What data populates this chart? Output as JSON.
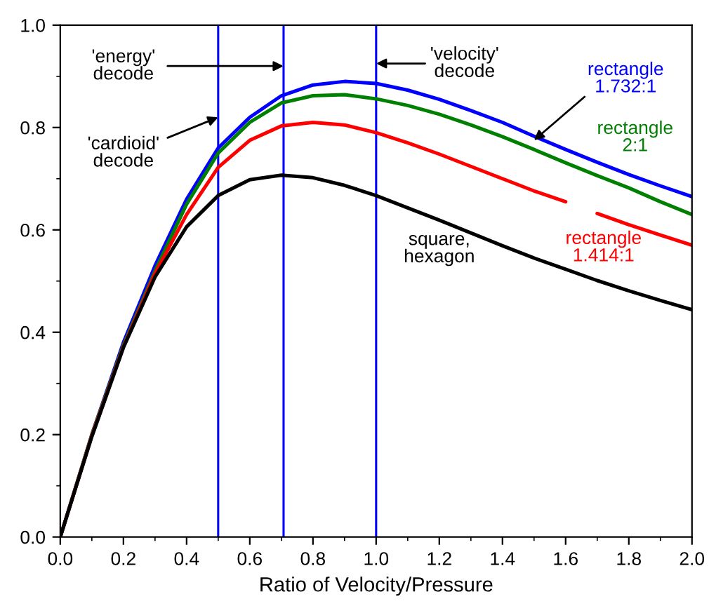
{
  "chart_data": {
    "type": "line",
    "xlabel": "Ratio of Velocity/Pressure",
    "x": [
      0,
      0.1,
      0.2,
      0.3,
      0.4,
      0.5,
      0.6,
      0.7,
      0.8,
      0.9,
      1.0,
      1.1,
      1.2,
      1.3,
      1.4,
      1.5,
      1.6,
      1.7,
      1.8,
      1.9,
      2.0
    ],
    "series": [
      {
        "name": "rectangle\n1.732:1",
        "color": "#0000ff",
        "values": [
          0,
          0.2,
          0.38,
          0.53,
          0.66,
          0.76,
          0.82,
          0.862,
          0.883,
          0.89,
          0.886,
          0.873,
          0.855,
          0.833,
          0.81,
          0.783,
          0.757,
          0.732,
          0.708,
          0.686,
          0.665
        ]
      },
      {
        "name": "rectangle\n2:1",
        "color": "#008000",
        "values": [
          0,
          0.2,
          0.375,
          0.52,
          0.65,
          0.75,
          0.81,
          0.848,
          0.862,
          0.864,
          0.856,
          0.843,
          0.826,
          0.805,
          0.782,
          0.757,
          0.731,
          0.706,
          0.682,
          0.655,
          0.63
        ]
      },
      {
        "name": "rectangle\n1.414:1",
        "color": "#ff0000",
        "x": [
          0,
          0.1,
          0.2,
          0.3,
          0.4,
          0.5,
          0.6,
          0.7,
          0.8,
          0.9,
          1.0,
          1.1,
          1.2,
          1.3,
          1.4,
          1.5,
          1.6,
          1.65,
          1.7,
          1.8,
          1.9,
          2.0
        ],
        "values": [
          0,
          0.198,
          0.372,
          0.515,
          0.63,
          0.722,
          0.775,
          0.803,
          0.81,
          0.805,
          0.79,
          0.77,
          0.748,
          0.724,
          0.7,
          0.676,
          0.655,
          null,
          0.632,
          0.61,
          0.59,
          0.57
        ]
      },
      {
        "name": "square,\nhexagon",
        "color": "#000000",
        "values": [
          0,
          0.196,
          0.37,
          0.508,
          0.606,
          0.667,
          0.698,
          0.707,
          0.702,
          0.687,
          0.667,
          0.643,
          0.619,
          0.594,
          0.569,
          0.545,
          0.523,
          0.501,
          0.481,
          0.462,
          0.444
        ]
      }
    ],
    "ref_lines": [
      {
        "axis": "x",
        "value": 0.5,
        "color": "#0000ff"
      },
      {
        "axis": "x",
        "value": 0.707,
        "color": "#0000ff"
      },
      {
        "axis": "x",
        "value": 1.0,
        "color": "#0000ff"
      }
    ],
    "annotations": [
      {
        "text": "'energy'\ndecode",
        "x": 0.707,
        "y": 0.92
      },
      {
        "text": "'cardioid'\ndecode",
        "x": 0.5,
        "y": 0.82
      },
      {
        "text": "'velocity'\ndecode",
        "x": 1.0,
        "y": 0.925
      }
    ],
    "xlim": [
      0,
      2.0
    ],
    "xticks": [
      {
        "value": 0,
        "label": "0.0"
      },
      0.2,
      0.4,
      0.6,
      0.8,
      {
        "value": 1,
        "label": "1.0"
      },
      1.2,
      1.4,
      1.6,
      1.8,
      {
        "value": 2,
        "label": "2.0"
      }
    ],
    "ylim": [
      0,
      1.0
    ],
    "yticks": [
      {
        "value": 0,
        "label": "0.0"
      },
      0.2,
      0.4,
      0.6,
      0.8,
      {
        "value": 1,
        "label": "1.0"
      }
    ],
    "grid": false,
    "legend": false,
    "marker": "none",
    "line_style": "solid"
  }
}
